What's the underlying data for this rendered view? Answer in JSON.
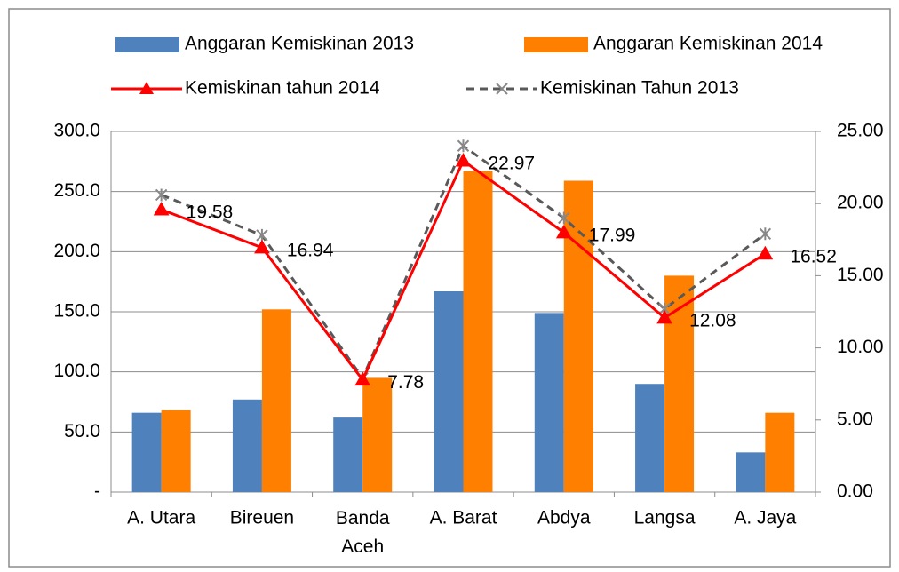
{
  "chart_data": {
    "type": "bar_line",
    "categories": [
      "A. Utara",
      "Bireuen",
      "Banda Aceh",
      "A. Barat",
      "Abdya",
      "Langsa",
      "A. Jaya"
    ],
    "series": [
      {
        "name": "Anggaran Kemiskinan 2013",
        "type": "bar",
        "color": "#4f81bd",
        "values": [
          66,
          77,
          62,
          167,
          149,
          90,
          33
        ]
      },
      {
        "name": "Anggaran Kemiskinan 2014",
        "type": "bar",
        "color": "#ff7f00",
        "values": [
          68,
          152,
          95,
          267,
          259,
          180,
          66
        ]
      },
      {
        "name": "Kemiskinan tahun 2014",
        "type": "line",
        "axis": "y2",
        "color": "#ff0000",
        "values": [
          19.58,
          16.94,
          7.78,
          22.97,
          17.99,
          12.08,
          16.52
        ]
      },
      {
        "name": "Kemiskinan Tahun 2013",
        "type": "line",
        "axis": "y2",
        "color": "#595959",
        "dashed": true,
        "values": [
          20.6,
          17.8,
          7.9,
          24.0,
          19.0,
          12.7,
          17.9
        ]
      }
    ],
    "ylim": [
      0,
      300
    ],
    "yticks": [
      {
        "value": 0,
        "label": "-"
      },
      {
        "value": 50,
        "label": "50.0"
      },
      {
        "value": 100,
        "label": "100.0"
      },
      {
        "value": 150,
        "label": "150.0"
      },
      {
        "value": 200,
        "label": "200.0"
      },
      {
        "value": 250,
        "label": "250.0"
      },
      {
        "value": 300,
        "label": "300.0"
      }
    ],
    "y2lim": [
      0,
      25
    ],
    "y2ticks": [
      {
        "value": 0,
        "label": "0.00"
      },
      {
        "value": 5,
        "label": "5.00"
      },
      {
        "value": 10,
        "label": "10.00"
      },
      {
        "value": 15,
        "label": "15.00"
      },
      {
        "value": 20,
        "label": "20.00"
      },
      {
        "value": 25,
        "label": "25.00"
      }
    ],
    "grid": true,
    "legend": "top"
  }
}
